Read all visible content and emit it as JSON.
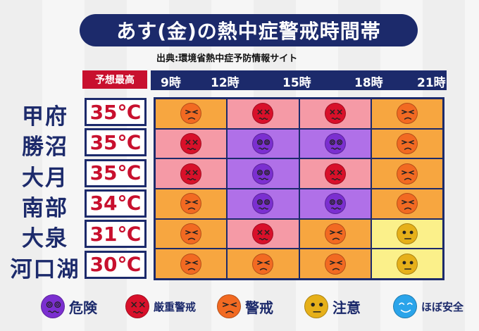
{
  "title": "あす(金)の熱中症警戒時間帯",
  "source": "出典:環境省熱中症予防情報サイト",
  "max_label": "予想最高",
  "hours": [
    "9時",
    "12時",
    "15時",
    "18時",
    "21時"
  ],
  "levels": {
    "danger": {
      "label": "危険",
      "face": "#7b2fd0",
      "bg": "#b070e8"
    },
    "severe": {
      "label": "厳重警戒",
      "face": "#d8102a",
      "bg": "#f59aa6"
    },
    "warning": {
      "label": "警戒",
      "face": "#f26a22",
      "bg": "#f7a640"
    },
    "caution": {
      "label": "注意",
      "face": "#e6b01a",
      "bg": "#fbf08a"
    },
    "safe": {
      "label": "ほぼ安全",
      "face": "#2aa4ea",
      "bg": "#bde4f8"
    }
  },
  "rows": [
    {
      "city": "甲府",
      "temp": "35℃",
      "levels": [
        "warning",
        "severe",
        "severe",
        "warning"
      ]
    },
    {
      "city": "勝沼",
      "temp": "35℃",
      "levels": [
        "severe",
        "danger",
        "danger",
        "warning"
      ]
    },
    {
      "city": "大月",
      "temp": "35℃",
      "levels": [
        "severe",
        "danger",
        "severe",
        "warning"
      ]
    },
    {
      "city": "南部",
      "temp": "34℃",
      "levels": [
        "warning",
        "danger",
        "danger",
        "warning"
      ]
    },
    {
      "city": "大泉",
      "temp": "31℃",
      "levels": [
        "warning",
        "severe",
        "warning",
        "caution"
      ]
    },
    {
      "city": "河口湖",
      "temp": "30℃",
      "levels": [
        "warning",
        "warning",
        "warning",
        "caution"
      ]
    }
  ],
  "legend_order": [
    "danger",
    "severe",
    "warning",
    "caution",
    "safe"
  ]
}
